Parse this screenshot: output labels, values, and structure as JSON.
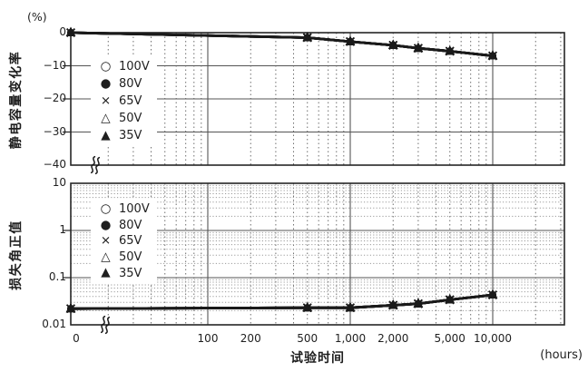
{
  "figure": {
    "background": "#ffffff",
    "ink": "#1a1a1a",
    "frame_color": "#262626",
    "major_grid_color": "#555555",
    "minor_grid_v_color": "#6f6f6f",
    "minor_grid_h_color": "#9b9b9b"
  },
  "legend": {
    "items": [
      {
        "icon": "circle-open-icon",
        "glyph": "○",
        "label": "100V"
      },
      {
        "icon": "circle-filled-icon",
        "glyph": "●",
        "label": "80V"
      },
      {
        "icon": "x-mark-icon",
        "glyph": "×",
        "label": "65V"
      },
      {
        "icon": "triangle-open-icon",
        "glyph": "△",
        "label": "50V"
      },
      {
        "icon": "triangle-filled-icon",
        "glyph": "▲",
        "label": "35V"
      }
    ]
  },
  "x_axis": {
    "scale": "log",
    "break_between": [
      0,
      100
    ],
    "ticks": [
      {
        "label": "0",
        "value": 0
      },
      {
        "label": "100",
        "value": 100
      },
      {
        "label": "200",
        "value": 200
      },
      {
        "label": "500",
        "value": 500
      },
      {
        "label": "1,000",
        "value": 1000
      },
      {
        "label": "2,000",
        "value": 2000
      },
      {
        "label": "5,000",
        "value": 5000
      },
      {
        "label": "10,000",
        "value": 10000
      }
    ]
  },
  "chart_data": [
    {
      "type": "line",
      "panel": "capacitance-change",
      "ylabel": "静电容量变化率",
      "y_unit": "(%)",
      "yscale": "linear",
      "ylim": [
        -40,
        0
      ],
      "yticks": [
        {
          "label": "0",
          "value": 0
        },
        {
          "label": "−10",
          "value": -10
        },
        {
          "label": "−20",
          "value": -20
        },
        {
          "label": "−30",
          "value": -30
        },
        {
          "label": "−40",
          "value": -40
        }
      ],
      "x": [
        0,
        500,
        1000,
        2000,
        3000,
        5000,
        10000
      ],
      "series_overlap": true,
      "series": [
        {
          "name": "100V",
          "values": [
            0,
            -1.5,
            -2.7,
            -3.8,
            -4.7,
            -5.6,
            -7
          ]
        },
        {
          "name": "80V",
          "values": [
            0,
            -1.5,
            -2.7,
            -3.8,
            -4.7,
            -5.6,
            -7
          ]
        },
        {
          "name": "65V",
          "values": [
            0,
            -1.5,
            -2.7,
            -3.8,
            -4.7,
            -5.6,
            -7
          ]
        },
        {
          "name": "50V",
          "values": [
            0,
            -1.5,
            -2.7,
            -3.8,
            -4.7,
            -5.6,
            -7
          ]
        },
        {
          "name": "35V",
          "values": [
            0,
            -1.5,
            -2.7,
            -3.8,
            -4.7,
            -5.6,
            -7
          ]
        }
      ]
    },
    {
      "type": "line",
      "panel": "tan-delta",
      "ylabel": "损失角正值",
      "xlabel": "试验时间",
      "x_unit": "(hours)",
      "yscale": "log",
      "ylim": [
        0.01,
        10
      ],
      "yticks": [
        {
          "label": "10",
          "value": 10
        },
        {
          "label": "1",
          "value": 1
        },
        {
          "label": "0.1",
          "value": 0.1
        },
        {
          "label": "0.01",
          "value": 0.01
        }
      ],
      "x": [
        0,
        500,
        1000,
        2000,
        3000,
        5000,
        10000
      ],
      "series_overlap": true,
      "series": [
        {
          "name": "100V",
          "values": [
            0.022,
            0.023,
            0.023,
            0.026,
            0.028,
            0.034,
            0.043
          ]
        },
        {
          "name": "80V",
          "values": [
            0.022,
            0.023,
            0.023,
            0.026,
            0.028,
            0.034,
            0.043
          ]
        },
        {
          "name": "65V",
          "values": [
            0.022,
            0.023,
            0.023,
            0.026,
            0.028,
            0.034,
            0.043
          ]
        },
        {
          "name": "50V",
          "values": [
            0.022,
            0.023,
            0.023,
            0.026,
            0.028,
            0.034,
            0.043
          ]
        },
        {
          "name": "35V",
          "values": [
            0.022,
            0.023,
            0.023,
            0.026,
            0.028,
            0.034,
            0.043
          ]
        }
      ]
    }
  ]
}
